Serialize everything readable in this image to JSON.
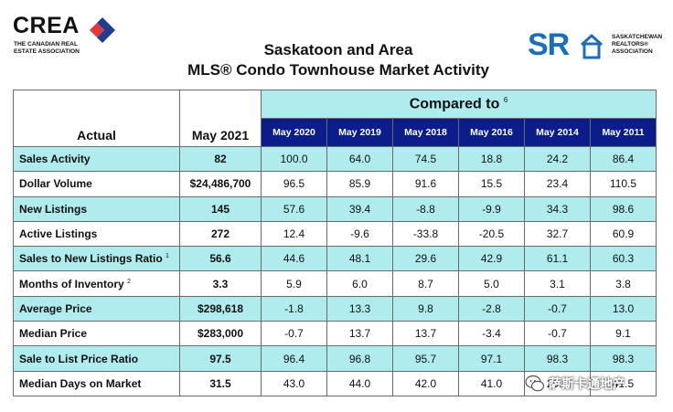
{
  "header": {
    "crea_logo_text": "CREA",
    "crea_logo_subtitle": [
      "THE CANADIAN REAL",
      "ESTATE ASSOCIATION"
    ],
    "title_line1": "Saskatoon and Area",
    "title_line2": "MLS® Condo Townhouse Market Activity",
    "sr_logo_text": "SR",
    "sr_logo_subtitle": [
      "SASKATCHEWAN",
      "REALTORS®",
      "ASSOCIATION"
    ]
  },
  "table": {
    "actual_label": "Actual",
    "current_period": "May 2021",
    "compared_label": "Compared to",
    "compared_footnote": "6",
    "compare_periods": [
      "May 2020",
      "May 2019",
      "May 2018",
      "May 2016",
      "May 2014",
      "May 2011"
    ],
    "rows": [
      {
        "label": "Sales Activity",
        "footnote": "",
        "actual": "82",
        "values": [
          "100.0",
          "64.0",
          "74.5",
          "18.8",
          "24.2",
          "86.4"
        ]
      },
      {
        "label": "Dollar Volume",
        "footnote": "",
        "actual": "$24,486,700",
        "values": [
          "96.5",
          "85.9",
          "91.6",
          "15.5",
          "23.4",
          "110.5"
        ]
      },
      {
        "label": "New Listings",
        "footnote": "",
        "actual": "145",
        "values": [
          "57.6",
          "39.4",
          "-8.8",
          "-9.9",
          "34.3",
          "98.6"
        ]
      },
      {
        "label": "Active Listings",
        "footnote": "",
        "actual": "272",
        "values": [
          "12.4",
          "-9.6",
          "-33.8",
          "-20.5",
          "32.7",
          "60.9"
        ]
      },
      {
        "label": "Sales to New Listings Ratio",
        "footnote": "1",
        "actual": "56.6",
        "values": [
          "44.6",
          "48.1",
          "29.6",
          "42.9",
          "61.1",
          "60.3"
        ]
      },
      {
        "label": "Months of Inventory",
        "footnote": "2",
        "actual": "3.3",
        "values": [
          "5.9",
          "6.0",
          "8.7",
          "5.0",
          "3.1",
          "3.8"
        ]
      },
      {
        "label": "Average Price",
        "footnote": "",
        "actual": "$298,618",
        "values": [
          "-1.8",
          "13.3",
          "9.8",
          "-2.8",
          "-0.7",
          "13.0"
        ]
      },
      {
        "label": "Median Price",
        "footnote": "",
        "actual": "$283,000",
        "values": [
          "-0.7",
          "13.7",
          "13.7",
          "-3.4",
          "-0.7",
          "9.1"
        ]
      },
      {
        "label": "Sale to List Price Ratio",
        "footnote": "",
        "actual": "97.5",
        "values": [
          "96.4",
          "96.8",
          "95.7",
          "97.1",
          "98.3",
          "98.3"
        ]
      },
      {
        "label": "Median Days on Market",
        "footnote": "",
        "actual": "31.5",
        "values": [
          "43.0",
          "44.0",
          "42.0",
          "41.0",
          "29.0",
          "41.5"
        ]
      }
    ]
  },
  "watermark": {
    "text": "萨斯卡通地产",
    "icon": "wechat-icon"
  },
  "colors": {
    "band": "#b0ecee",
    "year_header": "#0b1d8a",
    "sr_blue": "#1a6fb8",
    "crea_red": "#e03a3e",
    "crea_blue": "#1e3f8f"
  }
}
